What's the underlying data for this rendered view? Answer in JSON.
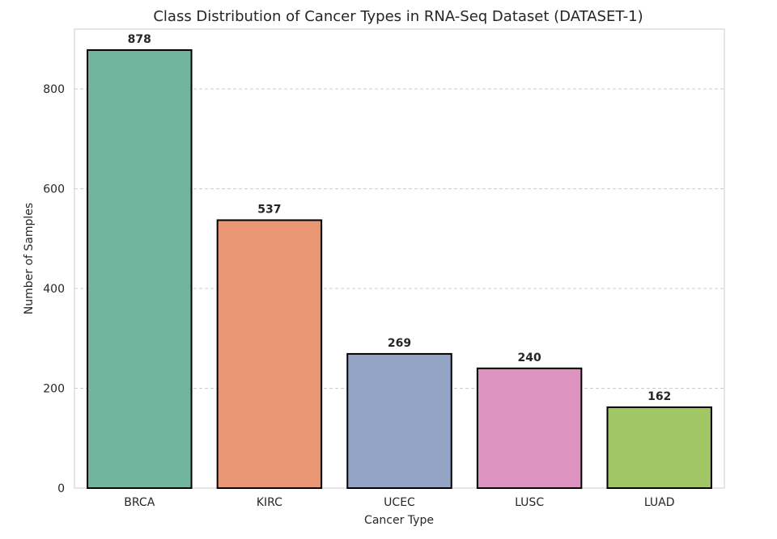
{
  "chart_data": {
    "type": "bar",
    "title": "Class Distribution of Cancer Types in RNA-Seq Dataset (DATASET-1)",
    "xlabel": "Cancer Type",
    "ylabel": "Number of Samples",
    "categories": [
      "BRCA",
      "KIRC",
      "UCEC",
      "LUSC",
      "LUAD"
    ],
    "values": [
      878,
      537,
      269,
      240,
      162
    ],
    "colors": [
      "#72b59f",
      "#e99674",
      "#94a4c5",
      "#dc93c0",
      "#a0c764"
    ],
    "ylim": [
      0,
      920
    ],
    "yticks": [
      0,
      200,
      400,
      600,
      800
    ],
    "grid": "y-dashed",
    "legend": "none"
  }
}
